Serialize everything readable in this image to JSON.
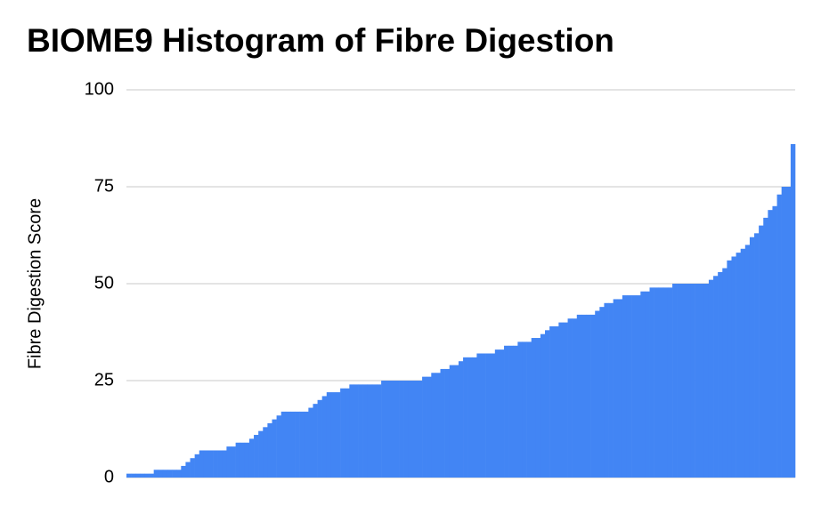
{
  "chart_data": {
    "type": "bar",
    "title": "BIOME9 Histogram of Fibre Digestion",
    "y_label": "Fibre Digestion Score",
    "categories": [
      null,
      null,
      null,
      null,
      null,
      null,
      null,
      null,
      null,
      null,
      null,
      null,
      null,
      null,
      null,
      null,
      null,
      null,
      null,
      null,
      null,
      null,
      null,
      null,
      null,
      null,
      null,
      null,
      null,
      null,
      null,
      null,
      null,
      null,
      null,
      null,
      null,
      null,
      null,
      null,
      null,
      null,
      null,
      null,
      null,
      null,
      null,
      null,
      null,
      null,
      null,
      null,
      null,
      null,
      null,
      null,
      null,
      null,
      null,
      null,
      null,
      null,
      null,
      null,
      null,
      null,
      null,
      null,
      null,
      null,
      null,
      null,
      null,
      null,
      null,
      null,
      null,
      null,
      null,
      null,
      null,
      null,
      null,
      null,
      null,
      null,
      null,
      null,
      null,
      null,
      null,
      null,
      null,
      null,
      null,
      null,
      null,
      null,
      null,
      null,
      null,
      null,
      null,
      null,
      null,
      null,
      null,
      null,
      null,
      null,
      null,
      null,
      null,
      null,
      null,
      null,
      null,
      null,
      null,
      null,
      null,
      null,
      null,
      null,
      null,
      null,
      null,
      null,
      null,
      null,
      null,
      null,
      null,
      null,
      null,
      null,
      null,
      null,
      null,
      null,
      null,
      null,
      null,
      null,
      null,
      null,
      null
    ],
    "values": [
      1,
      1,
      1,
      1,
      1,
      1,
      2,
      2,
      2,
      2,
      2,
      2,
      3,
      4,
      5,
      6,
      7,
      7,
      7,
      7,
      7,
      7,
      8,
      8,
      9,
      9,
      9,
      10,
      11,
      12,
      13,
      14,
      15,
      16,
      17,
      17,
      17,
      17,
      17,
      17,
      18,
      19,
      20,
      21,
      22,
      22,
      22,
      23,
      23,
      24,
      24,
      24,
      24,
      24,
      24,
      24,
      25,
      25,
      25,
      25,
      25,
      25,
      25,
      25,
      25,
      26,
      26,
      27,
      27,
      28,
      28,
      29,
      29,
      30,
      31,
      31,
      31,
      32,
      32,
      32,
      32,
      33,
      33,
      34,
      34,
      34,
      35,
      35,
      35,
      36,
      36,
      37,
      38,
      39,
      39,
      40,
      40,
      41,
      41,
      42,
      42,
      42,
      42,
      43,
      44,
      45,
      45,
      46,
      46,
      47,
      47,
      47,
      47,
      48,
      48,
      49,
      49,
      49,
      49,
      49,
      50,
      50,
      50,
      50,
      50,
      50,
      50,
      50,
      51,
      52,
      53,
      54,
      56,
      57,
      58,
      59,
      60,
      62,
      63,
      65,
      67,
      69,
      70,
      73,
      75,
      75,
      86
    ],
    "color": "#4285f4",
    "ylim": [
      0,
      100
    ],
    "yticks": [
      0,
      25,
      50,
      75,
      100
    ],
    "grid": true
  }
}
